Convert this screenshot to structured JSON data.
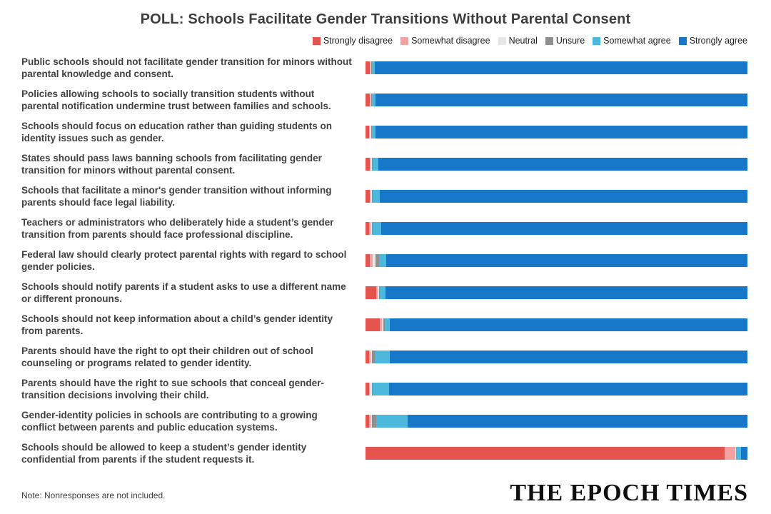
{
  "title": "POLL: Schools Facilitate Gender Transitions Without Parental Consent",
  "note": "Note: Nonresponses are not included.",
  "logo": "THE EPOCH TIMES",
  "colors": {
    "strongly_disagree": "#e5534e",
    "somewhat_disagree": "#f2a2a0",
    "neutral": "#e6e6e6",
    "unsure": "#8f8f8f",
    "somewhat_agree": "#4cb8dc",
    "strongly_agree": "#1777c8",
    "title_text": "#3d3d3d",
    "body_text": "#414141"
  },
  "chart_data": {
    "type": "bar",
    "orientation": "horizontal",
    "stacked": true,
    "unit": "percent",
    "xlim": [
      0,
      100
    ],
    "grid": false,
    "legend_position": "top-right",
    "categories": [
      "Public schools should not facilitate gender transition for minors without parental knowledge and consent.",
      "Policies allowing schools to socially transition students without parental notification undermine trust between families and schools.",
      "Schools should focus on education rather than guiding students on identity issues such as gender.",
      "States should pass laws banning schools from facilitating gender transition for minors without parental consent.",
      "Schools that facilitate a minor's gender transition without informing parents should face legal liability.",
      "Teachers or administrators who deliberately hide a student’s gender transition from parents should face professional discipline.",
      "Federal law should clearly protect parental rights with regard to school gender policies.",
      "Schools should notify parents if a student asks to use a different name or different pronouns.",
      "Schools should not keep information about a child’s gender identity from parents.",
      "Parents should have the right to opt their children out of school counseling or programs related to gender identity.",
      "Parents should have the right to sue schools that conceal gender-transition decisions involving their child.",
      "Gender-identity policies in schools are contributing to a growing conflict between parents and public education systems.",
      "Schools should be allowed to keep a student’s gender identity confidential from parents if the student requests it."
    ],
    "series": [
      {
        "name": "Strongly disagree",
        "color": "#e5534e",
        "values": [
          1.1,
          1.1,
          1.0,
          1.1,
          1.1,
          1.0,
          1.1,
          2.8,
          3.8,
          0.9,
          0.9,
          0.9,
          94.0
        ]
      },
      {
        "name": "Somewhat disagree",
        "color": "#f2a2a0",
        "values": [
          0.2,
          0.2,
          0.2,
          0.3,
          0.3,
          0.3,
          0.8,
          0.3,
          0.5,
          0.4,
          0.3,
          0.4,
          2.8
        ]
      },
      {
        "name": "Neutral",
        "color": "#e6e6e6",
        "values": [
          0.2,
          0.2,
          0.3,
          0.3,
          0.2,
          0.3,
          0.8,
          0.4,
          0.3,
          0.4,
          0.4,
          0.4,
          0.2
        ]
      },
      {
        "name": "Unsure",
        "color": "#8f8f8f",
        "values": [
          0.1,
          0.1,
          0.1,
          0.2,
          0.2,
          0.2,
          0.8,
          0.2,
          0.4,
          0.7,
          0.2,
          1.1,
          0.1
        ]
      },
      {
        "name": "Somewhat agree",
        "color": "#4cb8dc",
        "values": [
          0.8,
          1.0,
          1.0,
          1.5,
          1.9,
          2.4,
          1.9,
          1.5,
          1.3,
          4.0,
          4.3,
          8.3,
          1.3
        ]
      },
      {
        "name": "Strongly agree",
        "color": "#1777c8",
        "values": [
          97.6,
          97.4,
          97.4,
          96.6,
          96.3,
          95.8,
          94.6,
          94.8,
          93.7,
          93.6,
          93.9,
          88.9,
          1.6
        ]
      }
    ]
  }
}
